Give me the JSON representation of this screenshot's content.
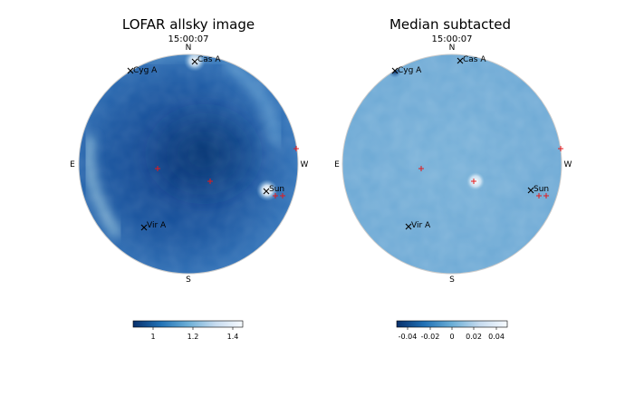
{
  "panels": [
    {
      "title": "LOFAR allsky image",
      "time": "15:00:07",
      "directions": {
        "north": "N",
        "south": "S",
        "east": "E",
        "west": "W"
      },
      "sources": [
        {
          "name": "Cyg A"
        },
        {
          "name": "Cas A"
        },
        {
          "name": "Sun"
        },
        {
          "name": "Vir A"
        }
      ],
      "colorbar": {
        "ticks": [
          "1",
          "1.2",
          "1.4"
        ],
        "colormap": "Blues_r"
      }
    },
    {
      "title": "Median subtacted",
      "time": "15:00:07",
      "directions": {
        "north": "N",
        "south": "S",
        "east": "E",
        "west": "W"
      },
      "sources": [
        {
          "name": "Cyg A"
        },
        {
          "name": "Cas A"
        },
        {
          "name": "Sun"
        },
        {
          "name": "Vir A"
        }
      ],
      "colorbar": {
        "ticks": [
          "-0.04",
          "-0.02",
          "0",
          "0.02",
          "0.04"
        ],
        "colormap": "Blues_r"
      }
    }
  ],
  "colors": {
    "dark_blue": "#08306b",
    "mid_blue": "#2f6fb5",
    "light_blue": "#9ecae1",
    "white": "#ffffff",
    "marker_red": "#e41a1c",
    "marker_black": "#000000"
  }
}
